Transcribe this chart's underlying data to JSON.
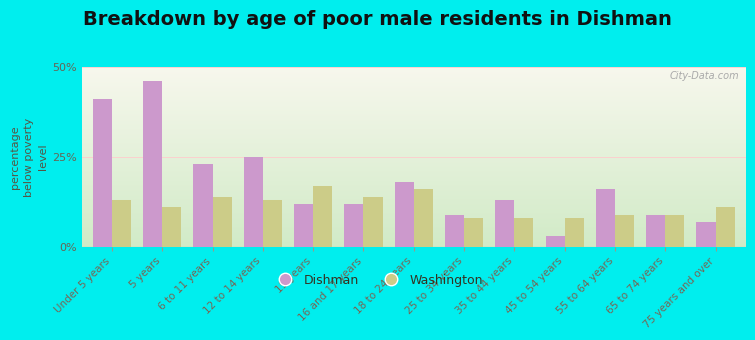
{
  "title": "Breakdown by age of poor male residents in Dishman",
  "ylabel": "percentage\nbelow poverty\nlevel",
  "categories": [
    "Under 5 years",
    "5 years",
    "6 to 11 years",
    "12 to 14 years",
    "15 years",
    "16 and 17 years",
    "18 to 24 years",
    "25 to 34 years",
    "35 to 44 years",
    "45 to 54 years",
    "55 to 64 years",
    "65 to 74 years",
    "75 years and over"
  ],
  "dishman_values": [
    41,
    46,
    23,
    25,
    12,
    12,
    18,
    9,
    13,
    3,
    16,
    9,
    7
  ],
  "washington_values": [
    13,
    11,
    14,
    13,
    17,
    14,
    16,
    8,
    8,
    8,
    9,
    9,
    11
  ],
  "dishman_color": "#cc99cc",
  "washington_color": "#cccc88",
  "background_color": "#00eeee",
  "plot_bg_color": "#eef5e8",
  "ylim": [
    0,
    50
  ],
  "yticks": [
    0,
    25,
    50
  ],
  "ytick_labels": [
    "0%",
    "25%",
    "50%"
  ],
  "bar_width": 0.38,
  "legend_dishman": "Dishman",
  "legend_washington": "Washington",
  "title_fontsize": 14,
  "axis_label_fontsize": 8,
  "tick_fontsize": 7.5,
  "watermark": "City-Data.com"
}
